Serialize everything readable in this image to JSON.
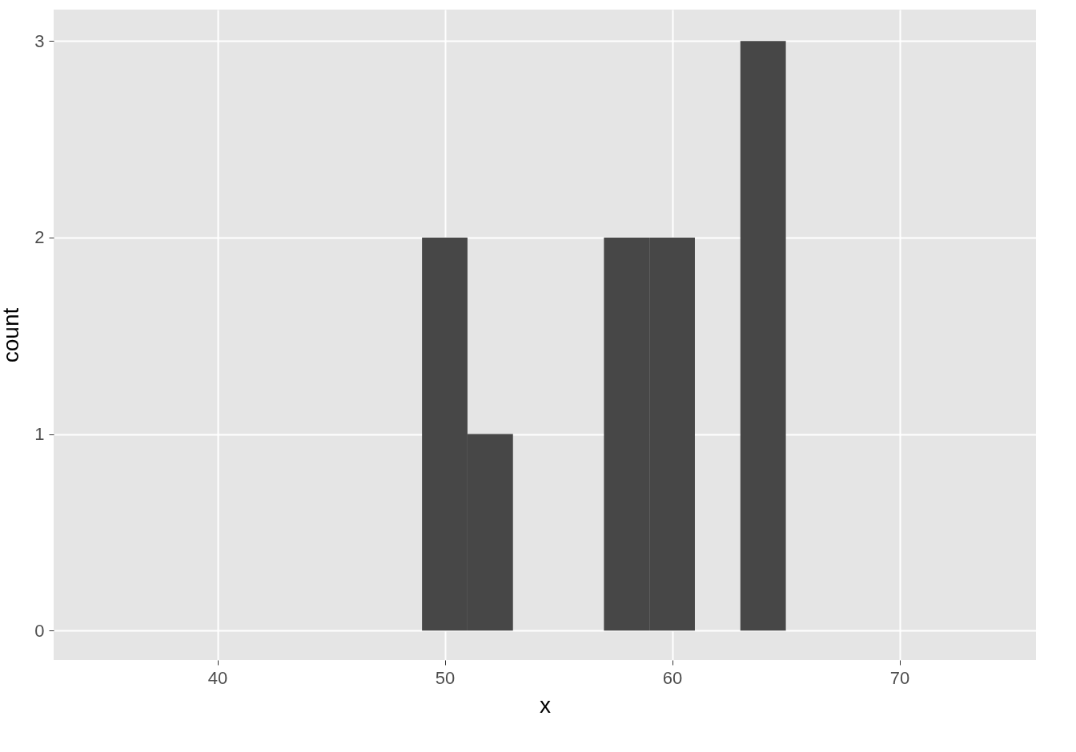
{
  "chart_data": {
    "type": "histogram",
    "xlabel": "x",
    "ylabel": "count",
    "bins": [
      49,
      51,
      53,
      55,
      57,
      59,
      61,
      63,
      65
    ],
    "values": [
      2,
      1,
      0,
      0,
      2,
      2,
      0,
      3
    ],
    "color": "#474747",
    "xlim": [
      32.8,
      76
    ],
    "xticks": [
      40,
      50,
      60,
      70
    ],
    "ylim": [
      -0.15,
      3.16
    ],
    "yticks": [
      0,
      1,
      2,
      3
    ],
    "grid": true
  }
}
